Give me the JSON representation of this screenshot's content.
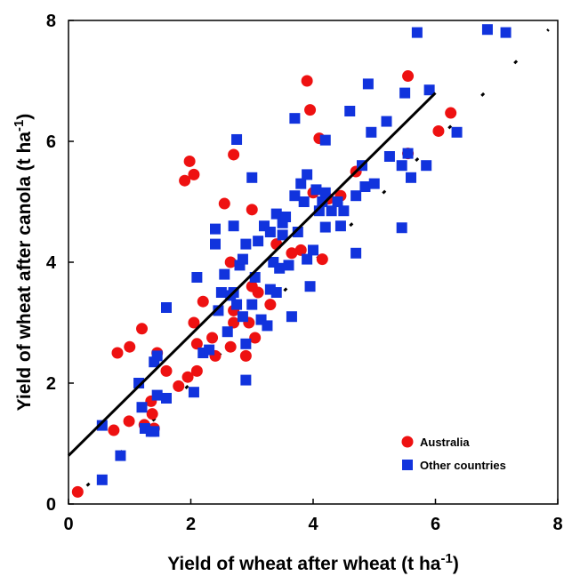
{
  "chart_data": {
    "type": "scatter",
    "xlabel": [
      "Yield of wheat after wheat (t ha",
      "-1",
      ")"
    ],
    "ylabel": [
      "Yield of wheat after canola (t ha",
      "-1",
      ")"
    ],
    "xlim": [
      0,
      8
    ],
    "ylim": [
      0,
      8
    ],
    "xticks": [
      0,
      2,
      4,
      6,
      8
    ],
    "yticks": [
      0,
      2,
      4,
      6,
      8
    ],
    "legend": "lower right",
    "series": [
      {
        "name": "Australia",
        "color": "#ee1111",
        "marker": "circle",
        "x": [
          0.15,
          0.74,
          0.99,
          1.24,
          1.37,
          0.8,
          1.0,
          1.2,
          1.9,
          1.98,
          2.05,
          2.7,
          2.55,
          3.9,
          3.95,
          4.1,
          5.55,
          5.55,
          6.25,
          6.05,
          4.7,
          4.45,
          4.25,
          4.0,
          4.15,
          3.8,
          3.65,
          3.0,
          1.45,
          1.6,
          1.8,
          1.95,
          2.1,
          2.1,
          2.05,
          2.2,
          2.35,
          2.4,
          2.65,
          2.7,
          2.7,
          2.65,
          2.9,
          2.95,
          3.05,
          3.0,
          3.1,
          3.3,
          3.4,
          1.4,
          1.35
        ],
        "values": [
          0.2,
          1.22,
          1.37,
          1.31,
          1.49,
          2.5,
          2.6,
          2.9,
          5.35,
          5.67,
          5.45,
          5.78,
          4.97,
          7.0,
          6.52,
          6.05,
          7.08,
          5.8,
          6.47,
          6.17,
          5.5,
          5.1,
          5.05,
          5.15,
          4.05,
          4.2,
          4.15,
          4.87,
          2.5,
          2.2,
          1.95,
          2.1,
          2.2,
          2.65,
          3.0,
          3.35,
          2.75,
          2.45,
          4.0,
          3.2,
          3.0,
          2.6,
          2.45,
          3.0,
          2.75,
          3.6,
          3.5,
          3.3,
          4.3,
          1.25,
          1.7
        ]
      },
      {
        "name": "Other countries",
        "color": "#1133dd",
        "marker": "square",
        "x": [
          0.55,
          0.55,
          0.85,
          1.15,
          1.2,
          1.25,
          1.35,
          1.4,
          1.4,
          1.45,
          1.45,
          1.6,
          1.6,
          2.05,
          2.1,
          2.2,
          2.3,
          2.4,
          2.4,
          2.45,
          2.5,
          2.55,
          2.6,
          2.65,
          2.7,
          2.75,
          2.8,
          2.75,
          2.7,
          2.85,
          2.9,
          2.85,
          2.9,
          2.9,
          3.0,
          3.0,
          3.05,
          3.1,
          3.15,
          3.2,
          3.25,
          3.3,
          3.3,
          3.35,
          3.4,
          3.45,
          3.5,
          3.5,
          3.55,
          3.6,
          3.65,
          3.7,
          3.7,
          3.75,
          3.8,
          3.85,
          3.9,
          3.9,
          3.95,
          4.0,
          4.05,
          4.1,
          4.15,
          4.2,
          4.2,
          4.2,
          4.3,
          4.4,
          4.45,
          4.5,
          4.6,
          4.7,
          4.7,
          4.8,
          4.85,
          4.9,
          4.95,
          5.0,
          5.2,
          5.25,
          5.45,
          5.45,
          5.5,
          5.55,
          5.6,
          5.85,
          5.9,
          6.35,
          5.7,
          6.85,
          7.15,
          3.4
        ],
        "values": [
          1.3,
          0.4,
          0.8,
          2.0,
          1.6,
          1.25,
          1.2,
          1.2,
          2.35,
          2.45,
          1.8,
          1.75,
          3.25,
          1.85,
          3.75,
          2.5,
          2.55,
          4.3,
          4.55,
          3.2,
          3.5,
          3.8,
          2.85,
          3.45,
          3.5,
          3.3,
          3.95,
          6.03,
          4.6,
          4.05,
          4.3,
          3.1,
          2.65,
          2.05,
          5.4,
          3.3,
          3.75,
          4.35,
          3.05,
          4.6,
          2.95,
          4.5,
          3.55,
          4.0,
          4.8,
          3.9,
          4.45,
          4.65,
          4.75,
          3.95,
          3.1,
          6.38,
          5.1,
          4.5,
          5.3,
          5.0,
          5.45,
          4.05,
          3.6,
          4.2,
          5.2,
          4.85,
          5.0,
          5.15,
          6.02,
          4.58,
          4.85,
          5.0,
          4.6,
          4.85,
          6.5,
          5.1,
          4.15,
          5.6,
          5.25,
          6.95,
          6.15,
          5.3,
          6.33,
          5.75,
          4.57,
          5.6,
          6.8,
          5.8,
          5.4,
          5.6,
          6.85,
          6.15,
          7.8,
          7.85,
          7.8,
          3.5
        ]
      }
    ],
    "fit_line": {
      "x": [
        0,
        6
      ],
      "values": [
        0.8,
        6.8
      ]
    },
    "one_to_one": {
      "x": [
        0.3,
        7.85
      ],
      "values": [
        0.3,
        7.85
      ]
    }
  }
}
